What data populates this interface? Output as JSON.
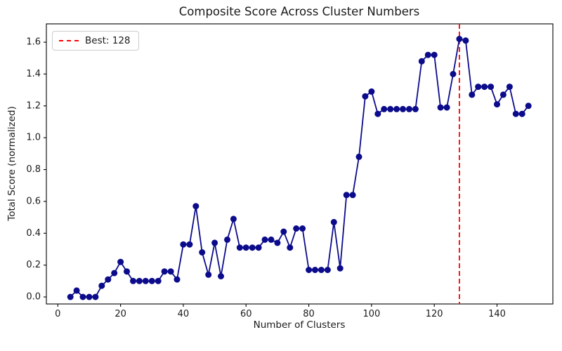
{
  "chart_data": {
    "type": "line",
    "title": "Composite Score Across Cluster Numbers",
    "xlabel": "Number of Clusters",
    "ylabel": "Total Score (normalized)",
    "legend": {
      "position": "upper left",
      "entries": [
        {
          "label": "Best: 128",
          "color": "#ff0000",
          "style": "dashed"
        }
      ]
    },
    "best_cluster": 128,
    "series_name": "composite-score",
    "line_color": "#0b0b8b",
    "marker": "circle",
    "marker_radius": 4.5,
    "best_line_color": "#ff0000",
    "grid": false,
    "xlim": [
      -3.65,
      157.8
    ],
    "ylim": [
      -0.044,
      1.715
    ],
    "xticks": [
      0,
      20,
      40,
      60,
      80,
      100,
      120,
      140
    ],
    "xtick_labels": [
      "0",
      "20",
      "40",
      "60",
      "80",
      "100",
      "120",
      "140"
    ],
    "yticks": [
      0.0,
      0.2,
      0.4,
      0.6,
      0.8,
      1.0,
      1.2,
      1.4,
      1.6
    ],
    "ytick_labels": [
      "0.0",
      "0.2",
      "0.4",
      "0.6",
      "0.8",
      "1.0",
      "1.2",
      "1.4",
      "1.6"
    ],
    "x": [
      4,
      6,
      8,
      10,
      12,
      14,
      16,
      18,
      20,
      22,
      24,
      26,
      28,
      30,
      32,
      34,
      36,
      38,
      40,
      42,
      44,
      46,
      48,
      50,
      52,
      54,
      56,
      58,
      60,
      62,
      64,
      66,
      68,
      70,
      72,
      74,
      76,
      78,
      80,
      82,
      84,
      86,
      88,
      90,
      92,
      94,
      96,
      98,
      100,
      102,
      104,
      106,
      108,
      110,
      112,
      114,
      116,
      118,
      120,
      122,
      124,
      126,
      128,
      130,
      132,
      134,
      136,
      138,
      140,
      142,
      144,
      146,
      148,
      150
    ],
    "y": [
      0.0,
      0.04,
      0.0,
      0.0,
      0.0,
      0.07,
      0.11,
      0.15,
      0.22,
      0.16,
      0.1,
      0.1,
      0.1,
      0.1,
      0.1,
      0.16,
      0.16,
      0.11,
      0.33,
      0.33,
      0.57,
      0.28,
      0.14,
      0.34,
      0.13,
      0.36,
      0.49,
      0.31,
      0.31,
      0.31,
      0.31,
      0.36,
      0.36,
      0.34,
      0.41,
      0.31,
      0.43,
      0.43,
      0.17,
      0.17,
      0.17,
      0.17,
      0.47,
      0.18,
      0.64,
      0.64,
      0.88,
      1.26,
      1.29,
      1.15,
      1.18,
      1.18,
      1.18,
      1.18,
      1.18,
      1.18,
      1.48,
      1.52,
      1.52,
      1.19,
      1.19,
      1.4,
      1.62,
      1.61,
      1.27,
      1.32,
      1.32,
      1.32,
      1.21,
      1.27,
      1.32,
      1.15,
      1.15,
      1.2
    ]
  }
}
